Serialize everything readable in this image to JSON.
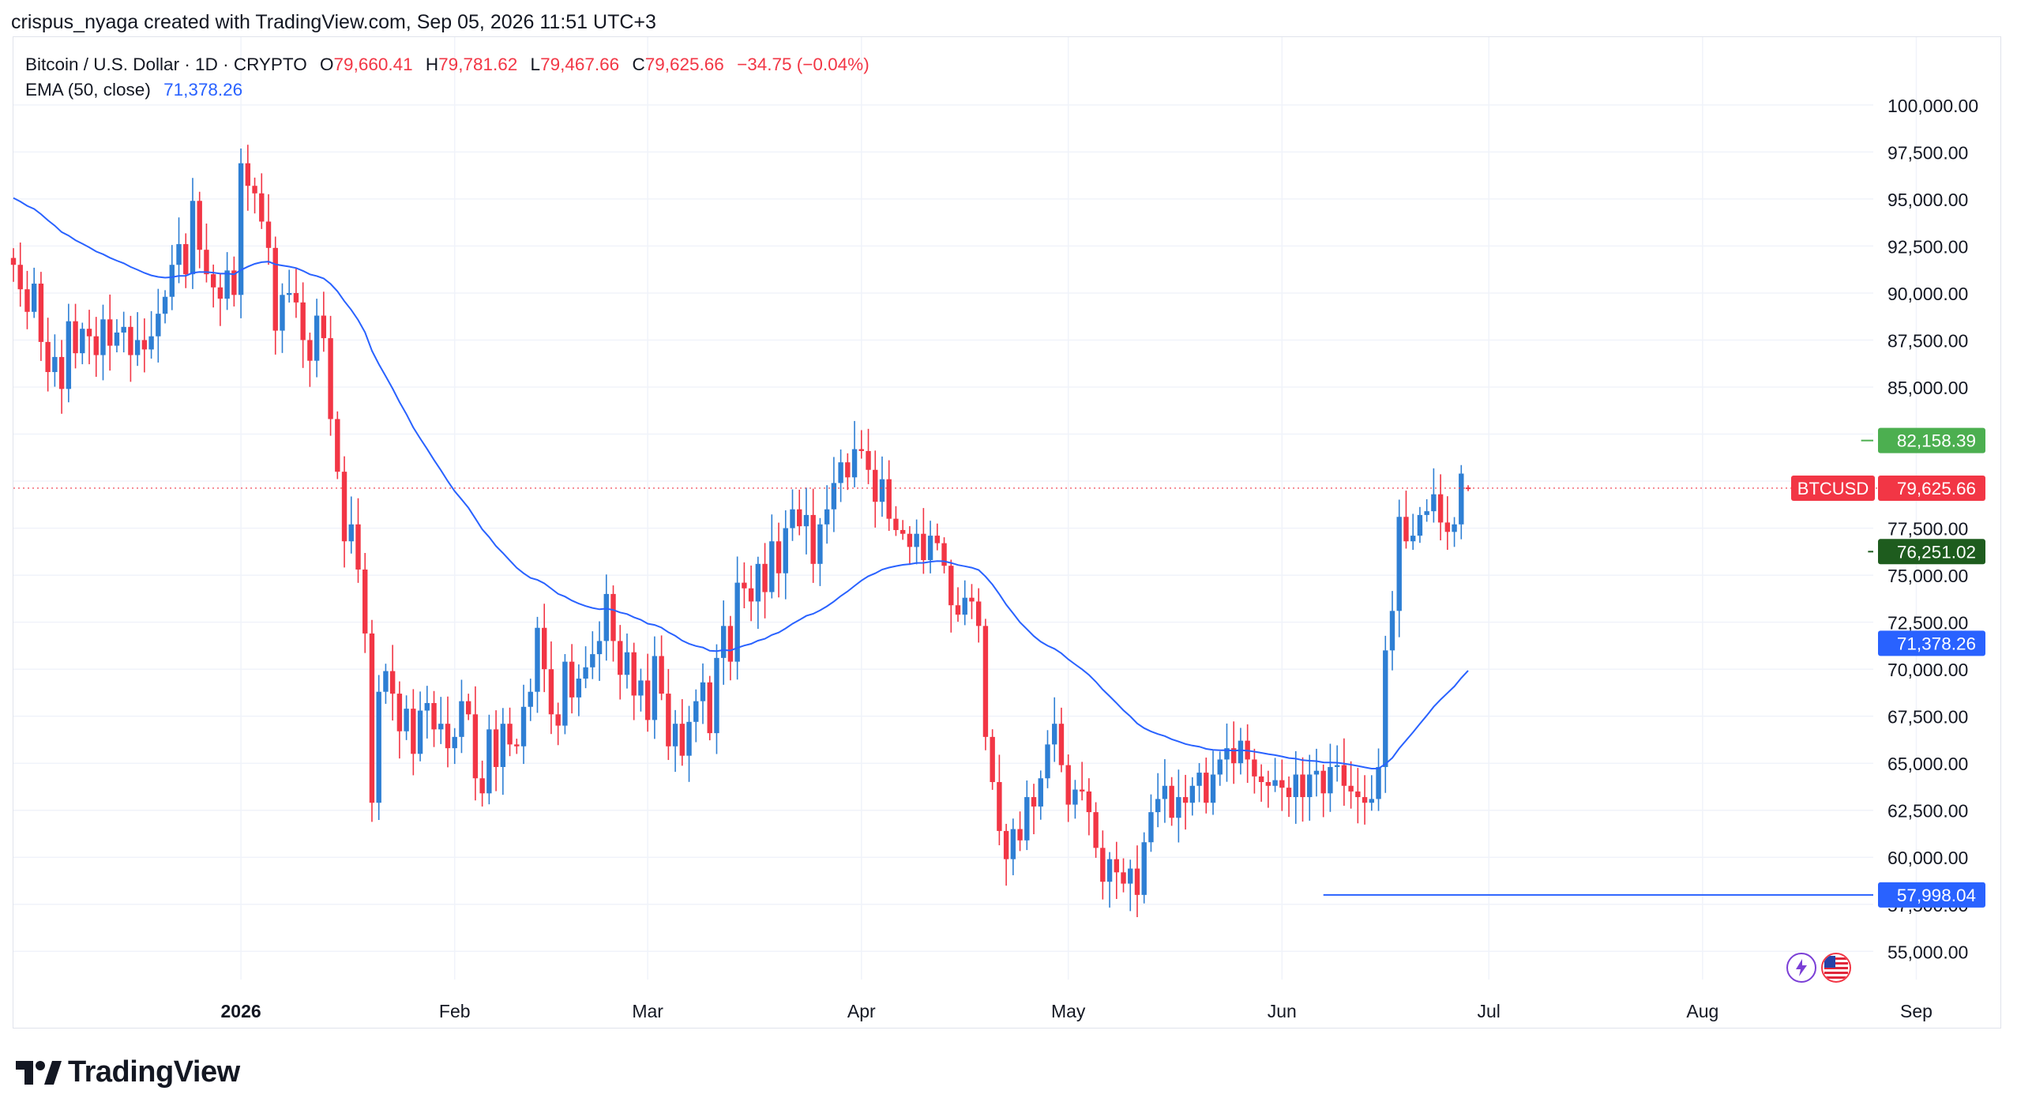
{
  "caption": "crispus_nyaga created with TradingView.com, Sep 05, 2026 11:51 UTC+3",
  "legend": {
    "symbol": "Bitcoin / U.S. Dollar · 1D · CRYPTO",
    "open_label": "O",
    "open": "79,660.41",
    "high_label": "H",
    "high": "79,781.62",
    "low_label": "L",
    "low": "79,467.66",
    "close_label": "C",
    "close": "79,625.66",
    "change": "−34.75 (−0.04%)",
    "ema_label": "EMA (50, close)",
    "ema_value": "71,378.26"
  },
  "footer": {
    "brand": "TradingView"
  },
  "colors": {
    "up": "#2e7fd4",
    "down": "#f23645",
    "ema": "#2962ff",
    "price_tag": "#f23645",
    "high_line": "#4caf50",
    "low_line": "#1e5c1e",
    "support_line": "#2962ff",
    "grid": "#f0f3fa"
  },
  "chart_data": {
    "type": "candlestick",
    "title": "Bitcoin / U.S. Dollar · 1D · CRYPTO",
    "y_ticks": [
      "100,000.00",
      "97,500.00",
      "95,000.00",
      "92,500.00",
      "90,000.00",
      "87,500.00",
      "85,000.00",
      "82,500.00",
      "80,000.00",
      "77,500.00",
      "75,000.00",
      "72,500.00",
      "70,000.00",
      "67,500.00",
      "65,000.00",
      "62,500.00",
      "60,000.00",
      "57,500.00",
      "55,000.00"
    ],
    "y_tick_values": [
      100000,
      97500,
      95000,
      92500,
      90000,
      87500,
      85000,
      82500,
      80000,
      77500,
      75000,
      72500,
      70000,
      67500,
      65000,
      62500,
      60000,
      57500,
      55000
    ],
    "ylim": [
      53500,
      101800
    ],
    "x_ticks": [
      {
        "label": "2026",
        "date": "2026-01-01",
        "bold": true
      },
      {
        "label": "Feb",
        "date": "2026-02-01"
      },
      {
        "label": "Mar",
        "date": "2026-03-01"
      },
      {
        "label": "Apr",
        "date": "2026-04-01"
      },
      {
        "label": "May",
        "date": "2026-05-01"
      },
      {
        "label": "Jun",
        "date": "2026-06-01"
      },
      {
        "label": "Jul",
        "date": "2026-07-01"
      },
      {
        "label": "Aug",
        "date": "2026-08-01"
      },
      {
        "label": "Sep",
        "date": "2026-09-01"
      }
    ],
    "x_start_date": "2025-11-29",
    "price_tags": [
      {
        "label": "82,158.39",
        "value": 82158.39,
        "color": "#4caf50"
      },
      {
        "label": "79,625.66",
        "value": 79625.66,
        "color": "#f23645",
        "name": "BTCUSD"
      },
      {
        "label": "76,251.02",
        "value": 76251.02,
        "color": "#1e5c1e"
      },
      {
        "label": "71,378.26",
        "value": 71378.26,
        "color": "#2962ff"
      },
      {
        "label": "57,998.04",
        "value": 57998.04,
        "color": "#2962ff"
      }
    ],
    "horizontal_lines": [
      {
        "value": 82158.39,
        "from": "2026-08-24",
        "to": "2026-09-05",
        "color": "#4caf50"
      },
      {
        "value": 76251.02,
        "from": "2026-08-25",
        "to": "2026-09-05",
        "color": "#1e5c1e"
      },
      {
        "value": 57998.04,
        "from": "2026-06-07",
        "to": "2026-09-05",
        "color": "#2962ff"
      }
    ],
    "close_series": [
      91500,
      90200,
      89000,
      90500,
      87400,
      85800,
      86600,
      84900,
      88500,
      86800,
      88100,
      87700,
      86700,
      88600,
      87200,
      87900,
      88200,
      86700,
      87500,
      87000,
      87700,
      88900,
      89800,
      91500,
      92600,
      91000,
      94900,
      92300,
      91000,
      90300,
      89700,
      91200,
      89900,
      96900,
      95700,
      95300,
      93800,
      92400,
      88000,
      89900,
      90000,
      89500,
      87500,
      86400,
      88800,
      87600,
      83300,
      80500,
      76800,
      77700,
      75300,
      71900,
      62900,
      68800,
      69900,
      68700,
      66700,
      67900,
      65500,
      67800,
      68200,
      66800,
      67100,
      65800,
      66400,
      68300,
      67600,
      64200,
      63400,
      66800,
      64800,
      67100,
      66000,
      65900,
      68000,
      68800,
      72200,
      70000,
      67600,
      67000,
      70400,
      68500,
      69500,
      70100,
      70800,
      71500,
      74000,
      71500,
      69700,
      70900,
      68600,
      69400,
      67300,
      70700,
      68700,
      65900,
      67100,
      65400,
      67200,
      68300,
      69300,
      66600,
      70600,
      72300,
      70400,
      74600,
      74300,
      73600,
      75600,
      74100,
      76800,
      75100,
      77500,
      78500,
      77600,
      78200,
      75600,
      77700,
      78500,
      79900,
      81000,
      80200,
      81700,
      81600,
      80600,
      78900,
      80100,
      78000,
      77400,
      77200,
      76500,
      77200,
      75800,
      77100,
      76700,
      75500,
      73400,
      72900,
      73800,
      73600,
      72300,
      66400,
      64000,
      61400,
      59900,
      61500,
      60900,
      63200,
      62700,
      64200,
      66000,
      67100,
      64900,
      62800,
      63600,
      63500,
      62400,
      60500,
      58700,
      59900,
      59200,
      58600,
      59400,
      58000,
      60800,
      62400,
      63100,
      63800,
      62100,
      63200,
      62900,
      63800,
      64500,
      62900,
      64400,
      65200,
      65800,
      65000,
      66200,
      65200,
      64300,
      64000,
      63800,
      64100,
      63700,
      63200,
      64400,
      63200,
      64400,
      64600,
      63400,
      64800,
      64900,
      63800,
      63500,
      63200,
      62900,
      63100,
      64800,
      71000,
      73100,
      78100,
      76800,
      77100,
      78200,
      78400,
      79300,
      77800,
      77300,
      77700,
      80400,
      79625.66
    ],
    "series": [
      {
        "name": "Bitcoin / U.S. Dollar",
        "kind": "candles"
      },
      {
        "name": "EMA (50, close)",
        "kind": "line",
        "last": 71378.26
      }
    ],
    "grid": true
  }
}
